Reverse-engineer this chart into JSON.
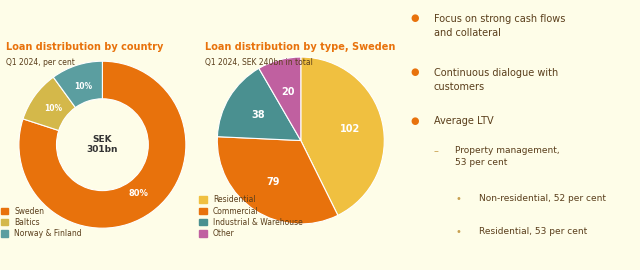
{
  "bg_color": "#fefde8",
  "title_color": "#e8720c",
  "text_color": "#5a3e1b",
  "subtitle_color": "#5a3e1b",
  "chart1_title": "Loan distribution by country",
  "chart1_subtitle": "Q1 2024, per cent",
  "chart1_values": [
    80,
    10,
    10
  ],
  "chart1_colors": [
    "#e8720c",
    "#d4b84a",
    "#5b9ea0"
  ],
  "chart1_legend": [
    "Sweden",
    "Baltics",
    "Norway & Finland"
  ],
  "chart1_center_text": "SEK\n301bn",
  "chart2_title": "Loan distribution by type, Sweden",
  "chart2_subtitle": "Q1 2024, SEK 240bn in total",
  "chart2_values": [
    102,
    79,
    38,
    20
  ],
  "chart2_colors": [
    "#f0c040",
    "#e8720c",
    "#4a9090",
    "#c060a0"
  ],
  "chart2_legend": [
    "Residential",
    "Commercial",
    "Industrial & Warehouse",
    "Other"
  ],
  "bullet_color": "#e8720c",
  "dash_color": "#c8a050",
  "sub_bullet_color": "#c8a050",
  "bullets": [
    "Focus on strong cash flows\nand collateral",
    "Continuous dialogue with\ncustomers",
    "Average LTV"
  ]
}
